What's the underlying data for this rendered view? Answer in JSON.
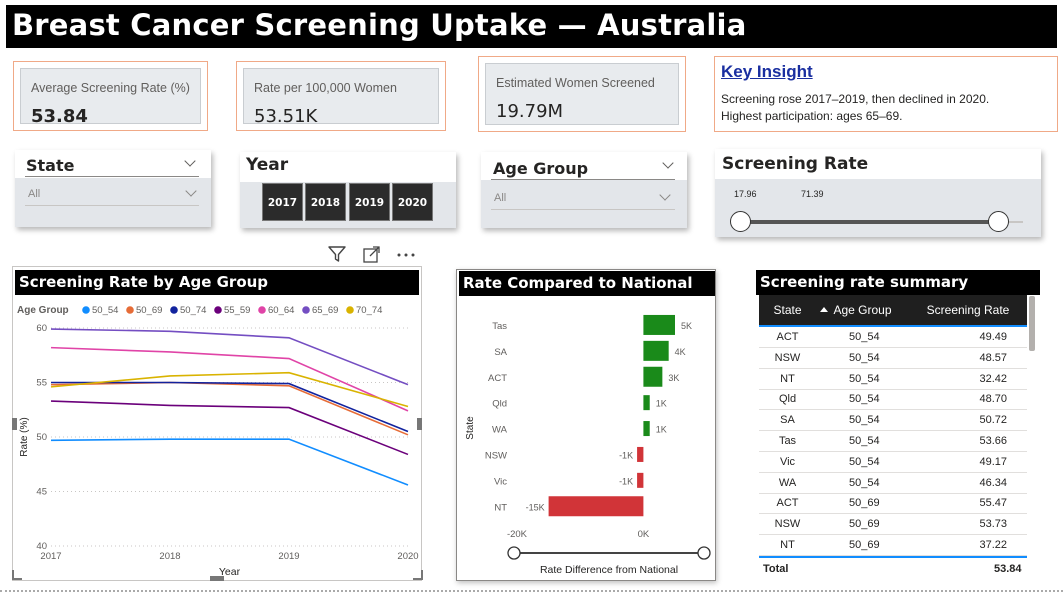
{
  "header": {
    "title": "Breast Cancer Screening Uptake — Australia"
  },
  "kpis": [
    {
      "label": "Average Screening Rate (%)",
      "value": "53.84"
    },
    {
      "label": "Rate per 100,000 Women",
      "value": "53.51K"
    },
    {
      "label": "Estimated Women Screened",
      "value": "19.79M"
    }
  ],
  "insight": {
    "title": "Key Insight",
    "line1": "Screening rose 2017–2019, then declined in 2020.",
    "line2": "Highest participation: ages 65–69."
  },
  "slicers": {
    "state": {
      "title": "State",
      "value": "All"
    },
    "year": {
      "title": "Year",
      "options": [
        "2017",
        "2018",
        "2019",
        "2020"
      ]
    },
    "age_group": {
      "title": "Age Group",
      "value": "All"
    },
    "screening_rate": {
      "title": "Screening Rate",
      "min_label": "17.96",
      "max_label": "71.39"
    }
  },
  "line_chart": {
    "title": "Screening Rate by Age Group",
    "legend_title": "Age Group",
    "xlabel": "Year",
    "ylabel": "Rate (%)",
    "x_ticks": [
      "2017",
      "2018",
      "2019",
      "2020"
    ],
    "y_ticks": [
      "40",
      "45",
      "50",
      "55",
      "60"
    ]
  },
  "bar_chart": {
    "title": "Rate Compared to National",
    "xlabel": "Rate Difference from National",
    "ylabel": "State",
    "x_ticks": [
      "-20K",
      "0K"
    ]
  },
  "table": {
    "title": "Screening rate summary",
    "columns": [
      "State",
      "Age Group",
      "Screening Rate"
    ],
    "rows": [
      [
        "ACT",
        "50_54",
        "49.49"
      ],
      [
        "NSW",
        "50_54",
        "48.57"
      ],
      [
        "NT",
        "50_54",
        "32.42"
      ],
      [
        "Qld",
        "50_54",
        "48.70"
      ],
      [
        "SA",
        "50_54",
        "50.72"
      ],
      [
        "Tas",
        "50_54",
        "53.66"
      ],
      [
        "Vic",
        "50_54",
        "49.17"
      ],
      [
        "WA",
        "50_54",
        "46.34"
      ],
      [
        "ACT",
        "50_69",
        "55.47"
      ],
      [
        "NSW",
        "50_69",
        "53.73"
      ],
      [
        "NT",
        "50_69",
        "37.22"
      ]
    ],
    "total_label": "Total",
    "total_value": "53.84"
  },
  "chart_data": [
    {
      "type": "line",
      "x": [
        2017,
        2018,
        2019,
        2020
      ],
      "ylim": [
        40,
        60
      ],
      "grid": true,
      "legend": "top",
      "series": [
        {
          "name": "50_54",
          "color": "#118dff",
          "values": [
            49.7,
            49.8,
            49.8,
            45.6
          ]
        },
        {
          "name": "50_69",
          "color": "#e66c37",
          "values": [
            54.8,
            55.0,
            54.7,
            50.2
          ]
        },
        {
          "name": "50_74",
          "color": "#12239e",
          "values": [
            55.0,
            55.0,
            54.9,
            50.5
          ]
        },
        {
          "name": "55_59",
          "color": "#6b007b",
          "values": [
            53.3,
            52.9,
            52.7,
            48.4
          ]
        },
        {
          "name": "60_64",
          "color": "#e044a7",
          "values": [
            58.2,
            57.8,
            57.2,
            52.4
          ]
        },
        {
          "name": "65_69",
          "color": "#744ec2",
          "values": [
            59.9,
            59.7,
            59.1,
            54.8
          ]
        },
        {
          "name": "70_74",
          "color": "#d9b300",
          "values": [
            54.6,
            55.6,
            55.9,
            52.8
          ]
        }
      ]
    },
    {
      "type": "bar",
      "orientation": "horizontal",
      "categories": [
        "Tas",
        "SA",
        "ACT",
        "Qld",
        "WA",
        "NSW",
        "Vic",
        "NT"
      ],
      "values": [
        5,
        4,
        3,
        1,
        1,
        -1,
        -1,
        -15
      ],
      "labels": [
        "5K",
        "4K",
        "3K",
        "1K",
        "1K",
        "-1K",
        "-1K",
        "-15K"
      ],
      "xlim": [
        -20,
        5
      ],
      "positive_color": "#1a8a1a",
      "negative_color": "#d13438"
    }
  ]
}
